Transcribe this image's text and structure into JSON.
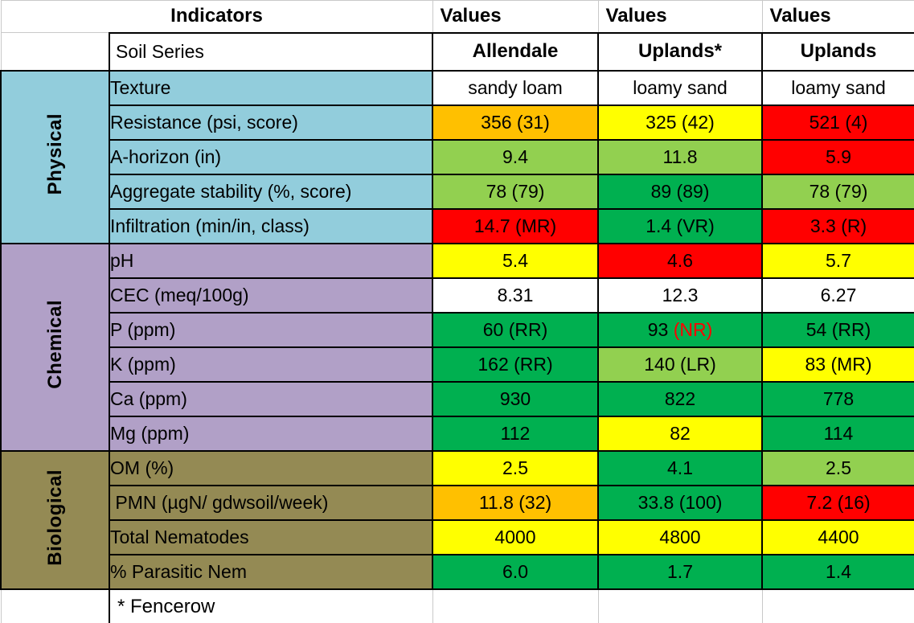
{
  "table": {
    "header": {
      "indicators": "Indicators",
      "values": [
        "Values",
        "Values",
        "Values"
      ]
    },
    "soil_series_row": {
      "label": "Soil Series",
      "series": [
        "Allendale",
        "Uplands*",
        "Uplands"
      ]
    },
    "sections": [
      {
        "name": "Physical",
        "bg": "#92CDDC",
        "rows": [
          {
            "indicator": "Texture",
            "cells": [
              {
                "text": "sandy loam",
                "bg": "white"
              },
              {
                "text": "loamy sand",
                "bg": "white"
              },
              {
                "text": "loamy sand",
                "bg": "white"
              }
            ]
          },
          {
            "indicator": "Resistance (psi, score)",
            "cells": [
              {
                "text": "356 (31)",
                "bg": "orange"
              },
              {
                "text": "325 (42)",
                "bg": "yellow"
              },
              {
                "text": "521 (4)",
                "bg": "red"
              }
            ]
          },
          {
            "indicator": "A-horizon (in)",
            "cells": [
              {
                "text": "9.4",
                "bg": "lightgreen"
              },
              {
                "text": "11.8",
                "bg": "lightgreen"
              },
              {
                "text": "5.9",
                "bg": "red"
              }
            ]
          },
          {
            "indicator": "Aggregate stability (%, score)",
            "cells": [
              {
                "text": "78 (79)",
                "bg": "lightgreen"
              },
              {
                "text": "89 (89)",
                "bg": "green"
              },
              {
                "text": "78 (79)",
                "bg": "lightgreen"
              }
            ]
          },
          {
            "indicator": "Infiltration (min/in, class)",
            "cells": [
              {
                "text": "14.7 (MR)",
                "bg": "red"
              },
              {
                "text": "1.4 (VR)",
                "bg": "green"
              },
              {
                "text": "3.3 (R)",
                "bg": "red"
              }
            ]
          }
        ]
      },
      {
        "name": "Chemical",
        "bg": "#B1A0C7",
        "rows": [
          {
            "indicator": "pH",
            "cells": [
              {
                "text": "5.4",
                "bg": "yellow"
              },
              {
                "text": "4.6",
                "bg": "red"
              },
              {
                "text": "5.7",
                "bg": "yellow"
              }
            ]
          },
          {
            "indicator": "CEC (meq/100g)",
            "cells": [
              {
                "text": "8.31",
                "bg": "white"
              },
              {
                "text": "12.3",
                "bg": "white"
              },
              {
                "text": "6.27",
                "bg": "white"
              }
            ]
          },
          {
            "indicator": "P (ppm)",
            "cells": [
              {
                "text": "60 (RR)",
                "bg": "green"
              },
              {
                "text": "93 (NR)",
                "bg": "green",
                "accent": "(NR)"
              },
              {
                "text": "54 (RR)",
                "bg": "green"
              }
            ]
          },
          {
            "indicator": "K (ppm)",
            "cells": [
              {
                "text": "162 (RR)",
                "bg": "green"
              },
              {
                "text": "140 (LR)",
                "bg": "lightgreen"
              },
              {
                "text": "83 (MR)",
                "bg": "yellow"
              }
            ]
          },
          {
            "indicator": "Ca (ppm)",
            "cells": [
              {
                "text": "930",
                "bg": "green"
              },
              {
                "text": "822",
                "bg": "green"
              },
              {
                "text": "778",
                "bg": "green"
              }
            ]
          },
          {
            "indicator": "Mg (ppm)",
            "cells": [
              {
                "text": "112",
                "bg": "green"
              },
              {
                "text": "82",
                "bg": "yellow"
              },
              {
                "text": "114",
                "bg": "green"
              }
            ]
          }
        ]
      },
      {
        "name": "Biological",
        "bg": "#948A54",
        "rows": [
          {
            "indicator": "OM (%)",
            "cells": [
              {
                "text": "2.5",
                "bg": "yellow"
              },
              {
                "text": "4.1",
                "bg": "green"
              },
              {
                "text": "2.5",
                "bg": "lightgreen"
              }
            ]
          },
          {
            "indicator": " PMN (µgN/ gdwsoil/week)",
            "cells": [
              {
                "text": "11.8 (32)",
                "bg": "orange"
              },
              {
                "text": "33.8 (100)",
                "bg": "green"
              },
              {
                "text": "7.2 (16)",
                "bg": "red"
              }
            ]
          },
          {
            "indicator": "Total Nematodes",
            "cells": [
              {
                "text": "4000",
                "bg": "yellow"
              },
              {
                "text": "4800",
                "bg": "yellow"
              },
              {
                "text": "4400",
                "bg": "yellow"
              }
            ]
          },
          {
            "indicator": "% Parasitic Nem",
            "cells": [
              {
                "text": "6.0",
                "bg": "green"
              },
              {
                "text": "1.7",
                "bg": "green"
              },
              {
                "text": "1.4",
                "bg": "green"
              }
            ]
          }
        ]
      }
    ],
    "footnote": "* Fencerow"
  },
  "palette": {
    "white": "#FFFFFF",
    "orange": "#FFC000",
    "yellow": "#FFFF00",
    "red": "#FF0000",
    "lightgreen": "#92D050",
    "green": "#00B050",
    "accent_text": "#FF0000",
    "physical": "#92CDDC",
    "chemical": "#B1A0C7",
    "biological": "#948A54",
    "border": "#000000",
    "gridline": "#C9C9C9"
  },
  "chart_data": {
    "type": "table",
    "columns": [
      "Indicators",
      "Allendale",
      "Uplands*",
      "Uplands"
    ],
    "groups": [
      {
        "group": "Physical",
        "rows": [
          [
            "Texture",
            "sandy loam",
            "loamy sand",
            "loamy sand"
          ],
          [
            "Resistance (psi, score)",
            "356 (31)",
            "325 (42)",
            "521 (4)"
          ],
          [
            "A-horizon (in)",
            "9.4",
            "11.8",
            "5.9"
          ],
          [
            "Aggregate stability (%, score)",
            "78 (79)",
            "89 (89)",
            "78 (79)"
          ],
          [
            "Infiltration (min/in, class)",
            "14.7 (MR)",
            "1.4 (VR)",
            "3.3 (R)"
          ]
        ]
      },
      {
        "group": "Chemical",
        "rows": [
          [
            "pH",
            "5.4",
            "4.6",
            "5.7"
          ],
          [
            "CEC (meq/100g)",
            "8.31",
            "12.3",
            "6.27"
          ],
          [
            "P (ppm)",
            "60 (RR)",
            "93 (NR)",
            "54 (RR)"
          ],
          [
            "K (ppm)",
            "162 (RR)",
            "140 (LR)",
            "83 (MR)"
          ],
          [
            "Ca (ppm)",
            "930",
            "822",
            "778"
          ],
          [
            "Mg (ppm)",
            "112",
            "82",
            "114"
          ]
        ]
      },
      {
        "group": "Biological",
        "rows": [
          [
            "OM (%)",
            "2.5",
            "4.1",
            "2.5"
          ],
          [
            "PMN (µgN/ gdwsoil/week)",
            "11.8 (32)",
            "33.8 (100)",
            "7.2 (16)"
          ],
          [
            "Total Nematodes",
            "4000",
            "4800",
            "4400"
          ],
          [
            "% Parasitic Nem",
            "6.0",
            "1.7",
            "1.4"
          ]
        ]
      }
    ],
    "footnote": "* Fencerow",
    "cell_colors": {
      "Resistance (psi, score)": [
        "orange",
        "yellow",
        "red"
      ],
      "A-horizon (in)": [
        "lightgreen",
        "lightgreen",
        "red"
      ],
      "Aggregate stability (%, score)": [
        "lightgreen",
        "green",
        "lightgreen"
      ],
      "Infiltration (min/in, class)": [
        "red",
        "green",
        "red"
      ],
      "pH": [
        "yellow",
        "red",
        "yellow"
      ],
      "CEC (meq/100g)": [
        "white",
        "white",
        "white"
      ],
      "P (ppm)": [
        "green",
        "green",
        "green"
      ],
      "K (ppm)": [
        "green",
        "lightgreen",
        "yellow"
      ],
      "Ca (ppm)": [
        "green",
        "green",
        "green"
      ],
      "Mg (ppm)": [
        "green",
        "yellow",
        "green"
      ],
      "OM (%)": [
        "yellow",
        "green",
        "lightgreen"
      ],
      "PMN (µgN/ gdwsoil/week)": [
        "orange",
        "green",
        "red"
      ],
      "Total Nematodes": [
        "yellow",
        "yellow",
        "yellow"
      ],
      "% Parasitic Nem": [
        "green",
        "green",
        "green"
      ],
      "Texture": [
        "white",
        "white",
        "white"
      ]
    }
  }
}
